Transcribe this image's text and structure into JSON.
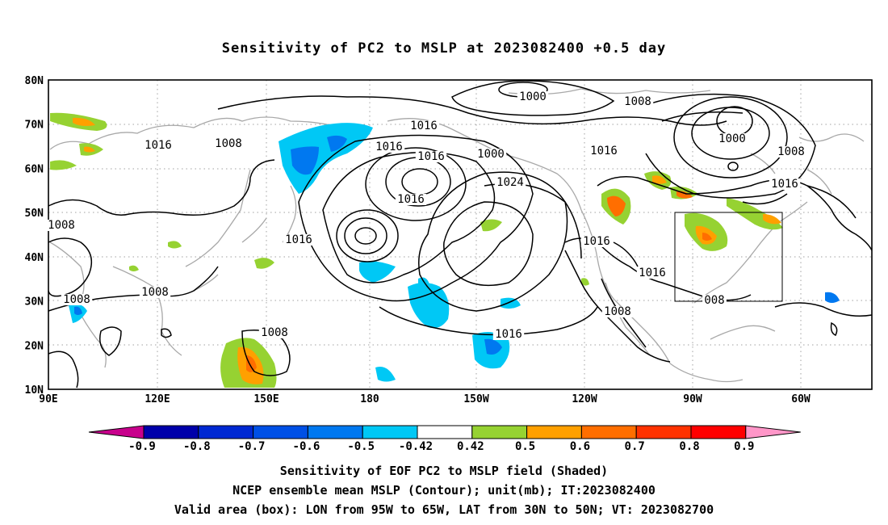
{
  "title": "Sensitivity of PC2 to MSLP at 2023082400 +0.5 day",
  "map": {
    "lon_labels": [
      "90E",
      "120E",
      "150E",
      "180",
      "150W",
      "120W",
      "90W",
      "60W"
    ],
    "lat_labels": [
      "80N",
      "70N",
      "60N",
      "50N",
      "40N",
      "30N",
      "20N",
      "10N"
    ],
    "contour_labels": [
      "1000",
      "1008",
      "1016",
      "1016",
      "1008",
      "1016",
      "1016",
      "1000",
      "1016",
      "1024",
      "1016",
      "1016",
      "1000",
      "1008",
      "1016",
      "1008",
      "1008",
      "1008",
      "1016",
      "1008",
      "1016",
      "1008",
      "1016",
      "008"
    ],
    "valid_box": {
      "lon_from": "95W",
      "lon_to": "65W",
      "lat_from": "30N",
      "lat_to": "50N"
    }
  },
  "colorbar": {
    "labels": [
      "-0.9",
      "-0.8",
      "-0.7",
      "-0.6",
      "-0.5",
      "-0.42",
      "0.42",
      "0.5",
      "0.6",
      "0.7",
      "0.8",
      "0.9"
    ],
    "colors": [
      "#c8008c",
      "#0000aa",
      "#0028d2",
      "#0050e6",
      "#0078f0",
      "#00c8f5",
      "#ffffff",
      "#96d232",
      "#ffa000",
      "#ff6e00",
      "#ff3200",
      "#ff0000",
      "#ff96c8"
    ]
  },
  "captions": {
    "line1": "Sensitivity of EOF PC2 to MSLP field (Shaded)",
    "line2": "NCEP ensemble mean MSLP (Contour); unit(mb); IT:2023082400",
    "line3": "Valid area (box): LON from 95W to 65W, LAT from 30N to 50N; VT: 2023082700"
  }
}
